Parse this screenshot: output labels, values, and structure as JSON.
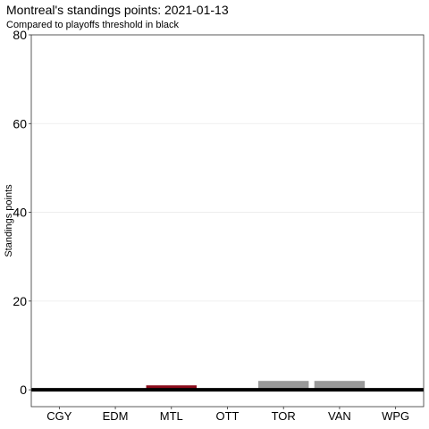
{
  "chart_data": {
    "type": "bar",
    "title": "Montreal's standings points: 2021-01-13",
    "subtitle": "Compared to playoffs threshold in black",
    "xlabel": "",
    "ylabel": "Standings points",
    "categories": [
      "CGY",
      "EDM",
      "MTL",
      "OTT",
      "TOR",
      "VAN",
      "WPG"
    ],
    "values": [
      0,
      0,
      1,
      0,
      2,
      2,
      0
    ],
    "highlight": "MTL",
    "colors": {
      "highlight": "#8b0a1a",
      "other": "#999999",
      "threshold": "#000000",
      "grid": "#ebebeb",
      "panel_border": "#333333"
    },
    "threshold": 0,
    "ylim": [
      -3.8,
      80
    ],
    "yticks": [
      0,
      20,
      40,
      60,
      80
    ],
    "grid": true,
    "legend": "none"
  }
}
